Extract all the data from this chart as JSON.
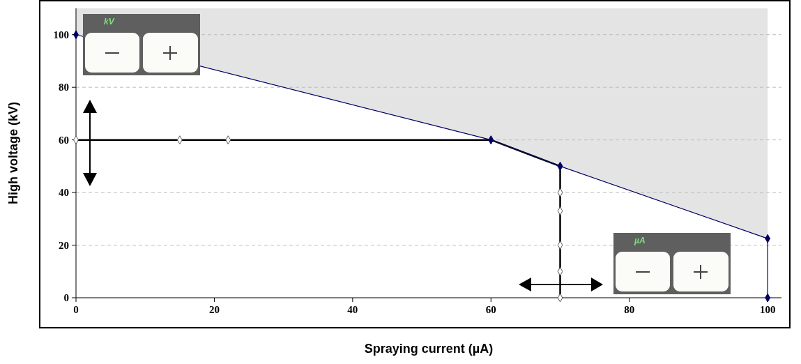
{
  "chart_data": {
    "type": "line",
    "xlabel": "Spraying current (µA)",
    "ylabel": "High voltage (kV)",
    "xlim": [
      0,
      102
    ],
    "ylim": [
      0,
      110
    ],
    "xticks": [
      0,
      20,
      40,
      60,
      80,
      100
    ],
    "yticks": [
      0,
      20,
      40,
      60,
      80,
      100
    ],
    "grid": "y",
    "annotations": [
      "kV",
      "µA"
    ],
    "series": [
      {
        "color": "#000066",
        "marker": "diamond",
        "x": [
          0,
          60,
          70,
          100,
          100
        ],
        "values": [
          100,
          60,
          50,
          22.5,
          0
        ],
        "lower": [
          100,
          60,
          50,
          22.5,
          0
        ],
        "upper": [
          110,
          110,
          110,
          110,
          110
        ]
      },
      {
        "color": "#000000",
        "marker": "diamond",
        "x": [
          0,
          15,
          22,
          60,
          70,
          70,
          70,
          70,
          70,
          70
        ],
        "values": [
          60,
          60,
          60,
          60,
          50,
          40,
          33,
          20,
          10,
          0
        ]
      }
    ]
  }
}
